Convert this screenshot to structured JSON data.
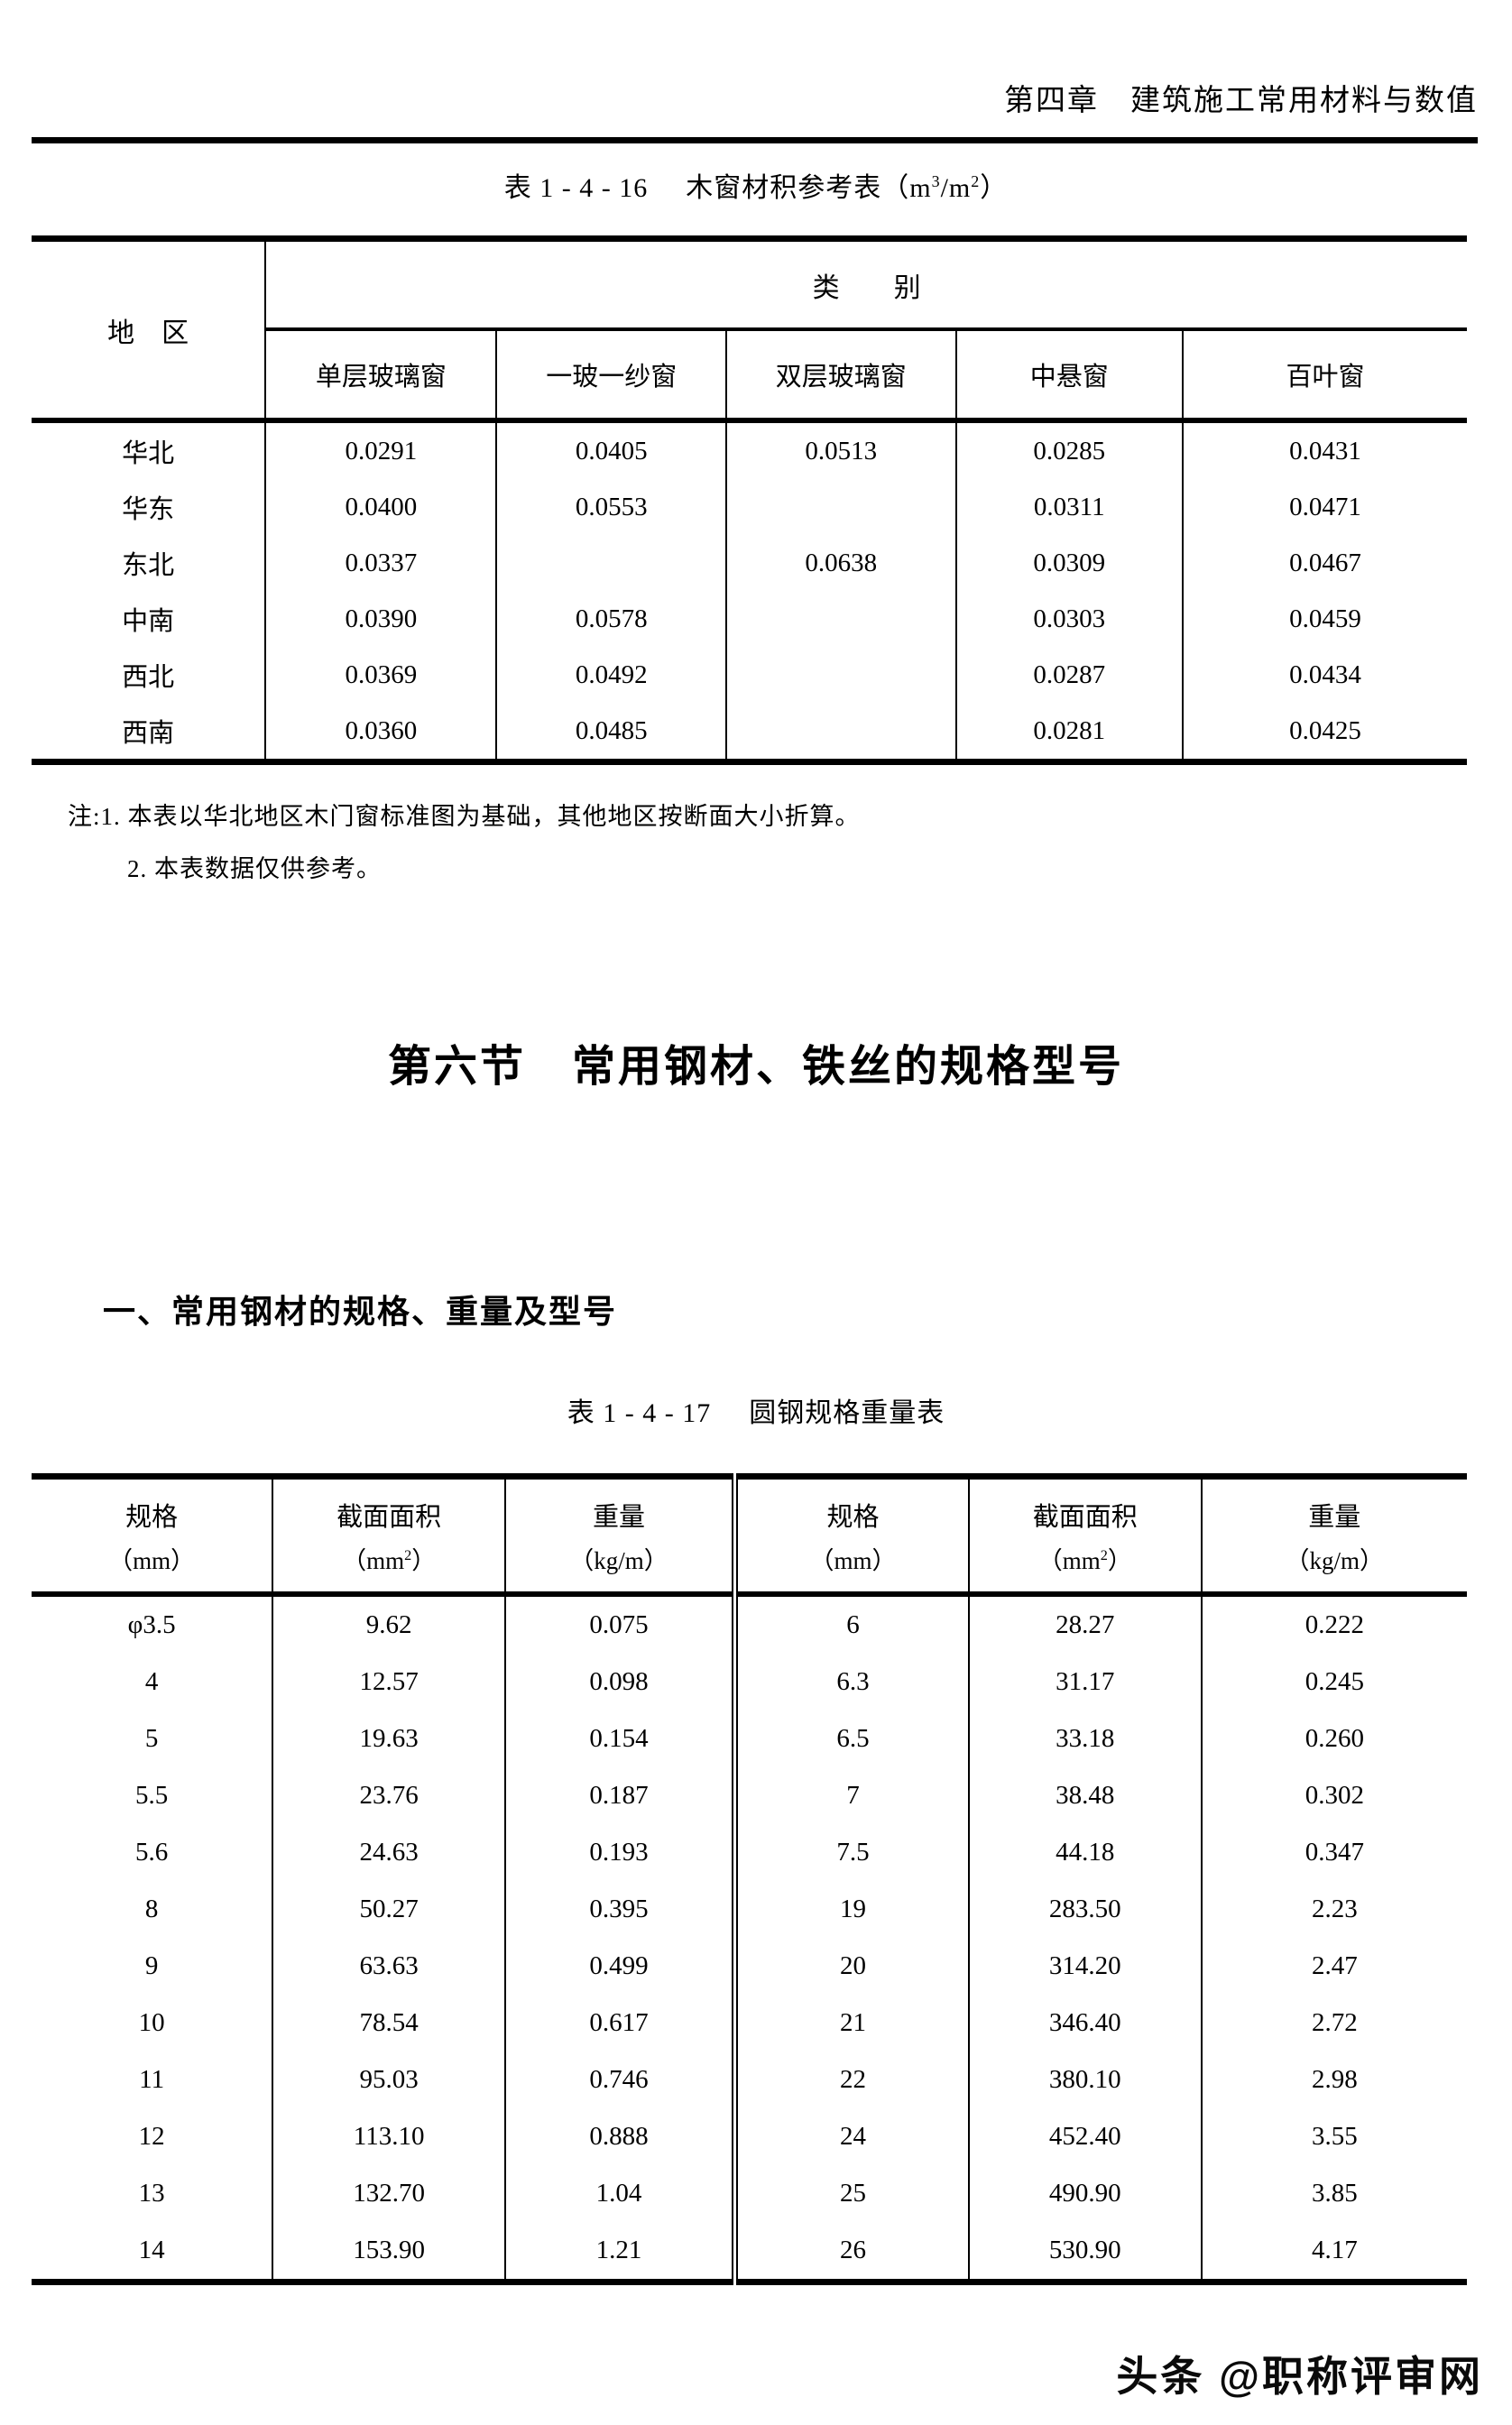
{
  "page": {
    "header": "第四章　建筑施工常用材料与数值",
    "watermark": "头条 @职称评审网"
  },
  "table1": {
    "title_prefix": "表 1 - 4 - 16",
    "title_name": "木窗材积参考表",
    "unit_open": "（m",
    "unit_sup1": "3",
    "unit_mid": "/m",
    "unit_sup2": "2",
    "unit_close": "）",
    "corner_header": "地　区",
    "group_header": "类　　别",
    "columns": [
      "单层玻璃窗",
      "一玻一纱窗",
      "双层玻璃窗",
      "中悬窗",
      "百叶窗"
    ],
    "rows": [
      {
        "region": "华北",
        "values": [
          "0.0291",
          "0.0405",
          "0.0513",
          "0.0285",
          "0.0431"
        ]
      },
      {
        "region": "华东",
        "values": [
          "0.0400",
          "0.0553",
          "",
          "0.0311",
          "0.0471"
        ]
      },
      {
        "region": "东北",
        "values": [
          "0.0337",
          "",
          "0.0638",
          "0.0309",
          "0.0467"
        ]
      },
      {
        "region": "中南",
        "values": [
          "0.0390",
          "0.0578",
          "",
          "0.0303",
          "0.0459"
        ]
      },
      {
        "region": "西北",
        "values": [
          "0.0369",
          "0.0492",
          "",
          "0.0287",
          "0.0434"
        ]
      },
      {
        "region": "西南",
        "values": [
          "0.0360",
          "0.0485",
          "",
          "0.0281",
          "0.0425"
        ]
      }
    ],
    "notes": [
      "注:1. 本表以华北地区木门窗标准图为基础，其他地区按断面大小折算。",
      "2. 本表数据仅供参考。"
    ]
  },
  "section": {
    "title": "第六节　常用钢材、铁丝的规格型号",
    "subsection": "一、常用钢材的规格、重量及型号"
  },
  "table2": {
    "title_prefix": "表 1 - 4 - 17",
    "title_name": "圆钢规格重量表",
    "headers": {
      "spec": "规格",
      "spec_unit": "（mm）",
      "area": "截面面积",
      "area_unit_open": "（mm",
      "area_unit_sup": "2",
      "area_unit_close": "）",
      "weight": "重量",
      "weight_unit": "（kg/m）"
    },
    "rows": [
      [
        "φ3.5",
        "9.62",
        "0.075",
        "6",
        "28.27",
        "0.222"
      ],
      [
        "4",
        "12.57",
        "0.098",
        "6.3",
        "31.17",
        "0.245"
      ],
      [
        "5",
        "19.63",
        "0.154",
        "6.5",
        "33.18",
        "0.260"
      ],
      [
        "5.5",
        "23.76",
        "0.187",
        "7",
        "38.48",
        "0.302"
      ],
      [
        "5.6",
        "24.63",
        "0.193",
        "7.5",
        "44.18",
        "0.347"
      ],
      [
        "8",
        "50.27",
        "0.395",
        "19",
        "283.50",
        "2.23"
      ],
      [
        "9",
        "63.63",
        "0.499",
        "20",
        "314.20",
        "2.47"
      ],
      [
        "10",
        "78.54",
        "0.617",
        "21",
        "346.40",
        "2.72"
      ],
      [
        "11",
        "95.03",
        "0.746",
        "22",
        "380.10",
        "2.98"
      ],
      [
        "12",
        "113.10",
        "0.888",
        "24",
        "452.40",
        "3.55"
      ],
      [
        "13",
        "132.70",
        "1.04",
        "25",
        "490.90",
        "3.85"
      ],
      [
        "14",
        "153.90",
        "1.21",
        "26",
        "530.90",
        "4.17"
      ]
    ]
  }
}
